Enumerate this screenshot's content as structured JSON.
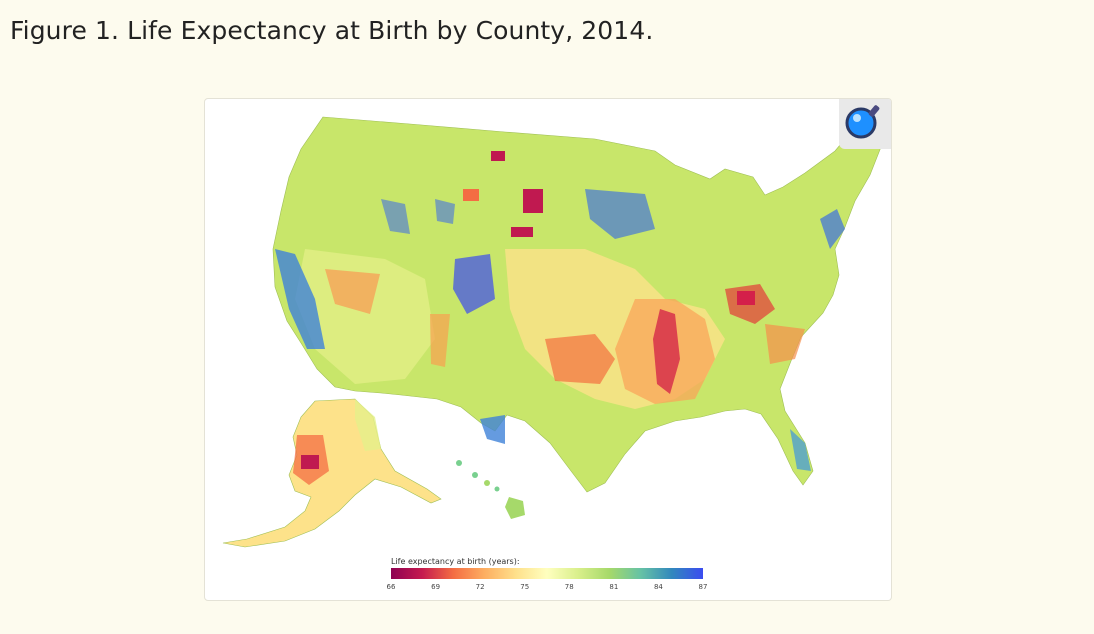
{
  "caption": "Figure 1. Life Expectancy at Birth by County, 2014.",
  "legend": {
    "title": "Life expectancy at birth (years):",
    "ticks": [
      "66",
      "69",
      "72",
      "75",
      "78",
      "81",
      "84",
      "87"
    ]
  },
  "zoom_icon": "magnifier-icon",
  "colors": {
    "background": "#fdfbee",
    "low": "#8e0152",
    "mid": "#ffffbf",
    "high": "#3b4cf0"
  }
}
